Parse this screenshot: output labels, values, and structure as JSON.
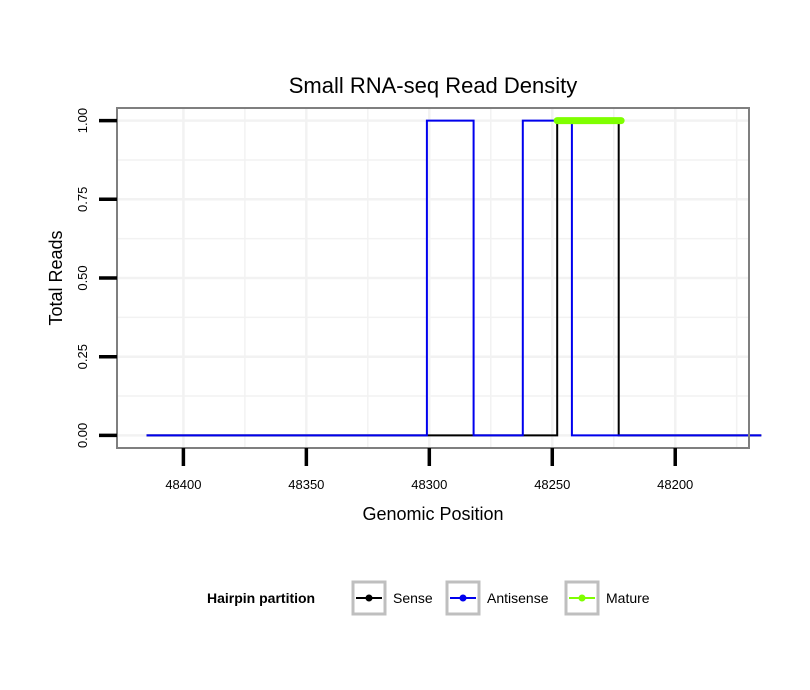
{
  "chart_data": {
    "type": "line",
    "title": "Small RNA-seq Read Density",
    "xlabel": "Genomic Position",
    "ylabel": "Total Reads",
    "xlim": [
      48427,
      48170
    ],
    "x_reversed": true,
    "ylim": [
      -0.04,
      1.04
    ],
    "x_ticks": [
      48400,
      48350,
      48300,
      48250,
      48200
    ],
    "x_tick_labels": [
      "48400",
      "48350",
      "48300",
      "48250",
      "48200"
    ],
    "y_ticks": [
      0,
      0.25,
      0.5,
      0.75,
      1.0
    ],
    "y_tick_labels": [
      "0.00",
      "0.25",
      "0.50",
      "0.75",
      "1.00"
    ],
    "grid": true,
    "legend": {
      "title": "Hairpin partition",
      "position": "bottom"
    },
    "series": [
      {
        "name": "Sense",
        "color": "#000000",
        "x": [
          48415,
          48248,
          48248,
          48223,
          48223,
          48165
        ],
        "y": [
          0,
          0,
          1,
          1,
          0,
          0
        ]
      },
      {
        "name": "Antisense",
        "color": "#0000ee",
        "x": [
          48415,
          48301,
          48301,
          48282,
          48282,
          48262,
          48262,
          48242,
          48242,
          48165
        ],
        "y": [
          0,
          0,
          1,
          1,
          0,
          0,
          1,
          1,
          0,
          0
        ]
      },
      {
        "name": "Mature",
        "color": "#7fff00",
        "x": [
          48248,
          48222
        ],
        "y": [
          1,
          1
        ]
      }
    ]
  }
}
